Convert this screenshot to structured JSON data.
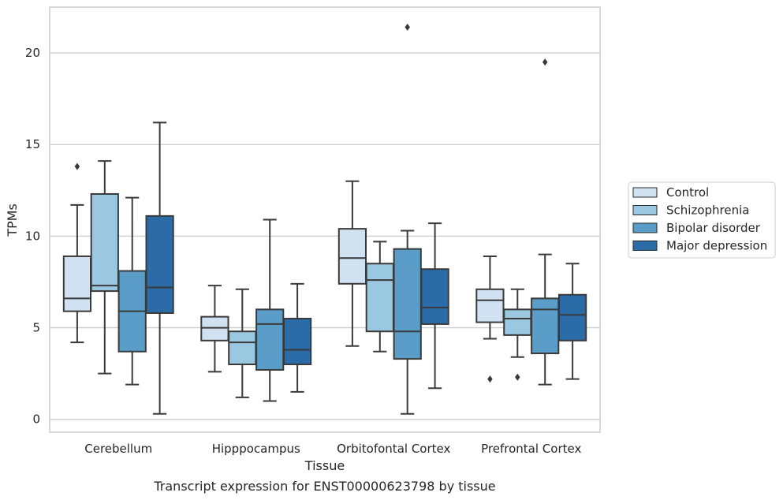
{
  "chart_data": {
    "type": "box",
    "caption": "Transcript expression for ENST00000623798 by tissue",
    "xlabel": "Tissue",
    "ylabel": "TPMs",
    "ylim": [
      -0.7,
      22.5
    ],
    "yticks": [
      0,
      5,
      10,
      15,
      20
    ],
    "grid": "horizontal",
    "legend_position": "right",
    "categories": [
      "Cerebellum",
      "Hipppocampus",
      "Orbitofontal Cortex",
      "Prefrontal Cortex"
    ],
    "series": [
      {
        "name": "Control",
        "color": "#d0e2f2",
        "boxes": [
          {
            "whislo": 4.2,
            "q1": 5.9,
            "med": 6.6,
            "q3": 8.9,
            "whishi": 11.7,
            "fliers": [
              13.8
            ]
          },
          {
            "whislo": 2.6,
            "q1": 4.3,
            "med": 5.0,
            "q3": 5.6,
            "whishi": 7.3,
            "fliers": []
          },
          {
            "whislo": 4.0,
            "q1": 7.4,
            "med": 8.8,
            "q3": 10.4,
            "whishi": 13.0,
            "fliers": []
          },
          {
            "whislo": 4.4,
            "q1": 5.3,
            "med": 6.5,
            "q3": 7.1,
            "whishi": 8.9,
            "fliers": [
              2.2
            ]
          }
        ]
      },
      {
        "name": "Schizophrenia",
        "color": "#9ac8e0",
        "boxes": [
          {
            "whislo": 2.5,
            "q1": 7.0,
            "med": 7.3,
            "q3": 12.3,
            "whishi": 14.1,
            "fliers": []
          },
          {
            "whislo": 1.2,
            "q1": 3.0,
            "med": 4.2,
            "q3": 4.8,
            "whishi": 7.1,
            "fliers": []
          },
          {
            "whislo": 3.7,
            "q1": 4.8,
            "med": 7.6,
            "q3": 8.5,
            "whishi": 9.7,
            "fliers": []
          },
          {
            "whislo": 3.4,
            "q1": 4.6,
            "med": 5.5,
            "q3": 6.0,
            "whishi": 7.1,
            "fliers": [
              2.3
            ]
          }
        ]
      },
      {
        "name": "Bipolar disorder",
        "color": "#5a9dc9",
        "boxes": [
          {
            "whislo": 1.9,
            "q1": 3.7,
            "med": 5.9,
            "q3": 8.1,
            "whishi": 12.1,
            "fliers": []
          },
          {
            "whislo": 1.0,
            "q1": 2.7,
            "med": 5.2,
            "q3": 6.0,
            "whishi": 10.9,
            "fliers": []
          },
          {
            "whislo": 0.3,
            "q1": 3.3,
            "med": 4.8,
            "q3": 9.3,
            "whishi": 10.3,
            "fliers": [
              21.4
            ]
          },
          {
            "whislo": 1.9,
            "q1": 3.6,
            "med": 6.0,
            "q3": 6.6,
            "whishi": 9.0,
            "fliers": [
              19.5
            ]
          }
        ]
      },
      {
        "name": "Major depression",
        "color": "#2b6ba8",
        "boxes": [
          {
            "whislo": 0.3,
            "q1": 5.8,
            "med": 7.2,
            "q3": 11.1,
            "whishi": 16.2,
            "fliers": []
          },
          {
            "whislo": 1.5,
            "q1": 3.0,
            "med": 3.8,
            "q3": 5.5,
            "whishi": 7.4,
            "fliers": []
          },
          {
            "whislo": 1.7,
            "q1": 5.2,
            "med": 6.1,
            "q3": 8.2,
            "whishi": 10.7,
            "fliers": []
          },
          {
            "whislo": 2.2,
            "q1": 4.3,
            "med": 5.7,
            "q3": 6.8,
            "whishi": 8.5,
            "fliers": []
          }
        ]
      }
    ]
  }
}
